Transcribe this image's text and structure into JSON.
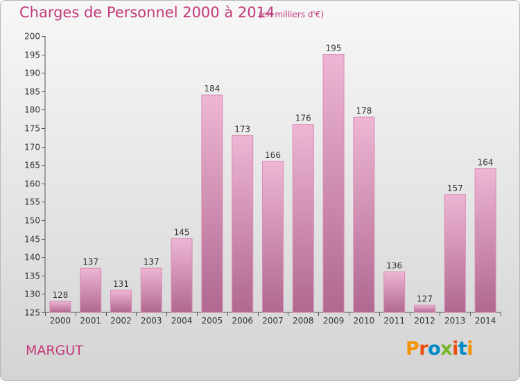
{
  "header": {
    "title": "Charges de Personnel 2000 à 2014",
    "subtitle": "(en milliers d'€)"
  },
  "footer": {
    "commune": "MARGUT",
    "logo_text": "Proxiti"
  },
  "colors": {
    "title": "#c2387b",
    "bar_top": "#eeb6d4",
    "bar_bottom": "#b06890",
    "logo_letters": [
      "#f39200",
      "#e94e0f",
      "#0089c7",
      "#76b82a",
      "#e94e0f",
      "#0089c7",
      "#f39200"
    ]
  },
  "chart_data": {
    "type": "bar",
    "title": "Charges de Personnel 2000 à 2014",
    "categories": [
      "2000",
      "2001",
      "2002",
      "2003",
      "2004",
      "2005",
      "2006",
      "2007",
      "2008",
      "2009",
      "2010",
      "2011",
      "2012",
      "2013",
      "2014"
    ],
    "values": [
      128,
      137,
      131,
      137,
      145,
      184,
      173,
      166,
      176,
      195,
      178,
      136,
      127,
      157,
      164
    ],
    "ylim": [
      125,
      200
    ],
    "yticks": [
      125,
      130,
      135,
      140,
      145,
      150,
      155,
      160,
      165,
      170,
      175,
      180,
      185,
      190,
      195,
      200
    ],
    "grid": false,
    "legend": "none"
  }
}
